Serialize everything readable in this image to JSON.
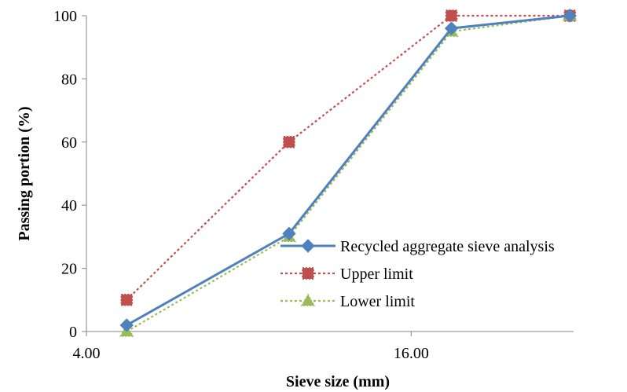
{
  "chart_data": {
    "type": "line",
    "title": "",
    "xlabel": "Sieve size (mm)",
    "ylabel": "Passing portion (%)",
    "x_scale": "log",
    "xlim": [
      4,
      32
    ],
    "ylim": [
      0,
      100
    ],
    "x_tick_labels": [
      "4.00",
      "16.00"
    ],
    "x_ticks": [
      4,
      16
    ],
    "y_ticks": [
      0,
      20,
      40,
      60,
      80,
      100
    ],
    "grid": false,
    "legend_position": "bottom-right",
    "x": [
      4.75,
      9.5,
      19,
      31.5
    ],
    "series": [
      {
        "name": "Recycled aggregate sieve analysis",
        "values": [
          2,
          31,
          96,
          100
        ],
        "color": "#4f81bd",
        "line_style": "solid",
        "marker": "diamond"
      },
      {
        "name": "Upper limit",
        "values": [
          10,
          60,
          100,
          100
        ],
        "color": "#c0504d",
        "line_style": "dotted",
        "marker": "square"
      },
      {
        "name": "Lower limit",
        "values": [
          0,
          30,
          95,
          100
        ],
        "color": "#9bbb59",
        "line_style": "dotted",
        "marker": "triangle"
      }
    ]
  }
}
